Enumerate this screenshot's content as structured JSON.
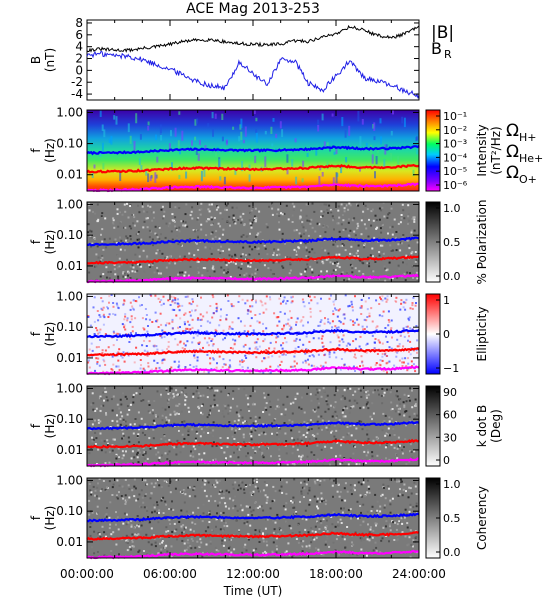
{
  "title": "ACE Mag 2013-253",
  "x_axis": {
    "label": "Time (UT)",
    "ticks": [
      "00:00:00",
      "06:00:00",
      "12:00:00",
      "18:00:00",
      "24:00:00"
    ],
    "range_hours": [
      0,
      24
    ]
  },
  "colors": {
    "B_total": "#000000",
    "B_R": "#1f1fe6",
    "H": "#0000ff",
    "He": "#ff0000",
    "O": "#ff00ff"
  },
  "legend_field": {
    "total": "|B|",
    "radial": "B",
    "radial_sub": "R"
  },
  "legend_gyro": {
    "omega": "Ω",
    "items": [
      {
        "sub": "H+",
        "color": "#0000ff"
      },
      {
        "sub": "He+",
        "color": "#ff0000"
      },
      {
        "sub": "O+",
        "color": "#ff00ff"
      }
    ]
  },
  "field_panel": {
    "ylabel": "B",
    "yunit": "(nT)",
    "yticks": [
      "8",
      "6",
      "4",
      "2",
      "0",
      "-2",
      "-4"
    ],
    "ylim": [
      -5,
      8.5
    ]
  },
  "freq_axis": {
    "ylabel": "f",
    "yunit": "(Hz)",
    "ticks": [
      "1.00",
      "0.10",
      "0.01"
    ],
    "scale": "log",
    "range_hz": [
      0.003,
      1.2
    ]
  },
  "spectrogram_panels": [
    {
      "id": "intensity",
      "colorbar": "rainbow",
      "cb_label": "Intensity",
      "cb_unit": "(nT²/Hz)",
      "cb_ticks": [
        "10⁻¹",
        "10⁻²",
        "10⁻³",
        "10⁻⁴",
        "10⁻⁵",
        "10⁻⁶"
      ]
    },
    {
      "id": "polarization",
      "colorbar": "gray",
      "cb_label": "% Polarization",
      "cb_unit": "",
      "cb_ticks": [
        "1.0",
        "0.5",
        "0.0"
      ]
    },
    {
      "id": "ellipticity",
      "colorbar": "bwr",
      "cb_label": "Ellipticity",
      "cb_unit": "",
      "cb_ticks": [
        "1",
        "0",
        "−1"
      ]
    },
    {
      "id": "kdotb",
      "colorbar": "gray",
      "cb_label": "k dot B",
      "cb_unit": "(Deg)",
      "cb_ticks": [
        "90",
        "60",
        "30",
        "0"
      ]
    },
    {
      "id": "coherency",
      "colorbar": "gray",
      "cb_label": "Coherency",
      "cb_unit": "",
      "cb_ticks": [
        "1.0",
        "0.5",
        "0.0"
      ]
    }
  ],
  "chart_data": [
    {
      "type": "line",
      "title": "ACE Mag 2013-253",
      "xlabel": "Time (UT)",
      "ylabel": "B (nT)",
      "ylim": [
        -5,
        8.5
      ],
      "x_hours": [
        0,
        1,
        2,
        3,
        4,
        5,
        6,
        7,
        8,
        9,
        10,
        11,
        12,
        13,
        14,
        15,
        16,
        17,
        18,
        19,
        20,
        21,
        22,
        23,
        24
      ],
      "series": [
        {
          "name": "|B|",
          "values": [
            3.4,
            3.6,
            3.4,
            3.4,
            3.7,
            4.0,
            4.4,
            4.9,
            5.1,
            5.2,
            4.8,
            4.5,
            4.4,
            4.3,
            4.4,
            5.0,
            4.9,
            5.6,
            6.2,
            7.4,
            6.8,
            5.9,
            5.5,
            6.2,
            7.4
          ]
        },
        {
          "name": "B_R",
          "values": [
            2.6,
            2.8,
            2.5,
            2.4,
            1.8,
            1.0,
            0.2,
            -0.8,
            -1.9,
            -2.6,
            -3.0,
            1.4,
            -0.6,
            -2.4,
            1.8,
            1.6,
            -2.2,
            -3.4,
            -1.0,
            1.6,
            -1.2,
            -1.8,
            -2.6,
            -3.4,
            -4.4
          ]
        }
      ]
    },
    {
      "type": "line",
      "title": "",
      "xlabel": "Time (UT)",
      "ylabel": "f (Hz)",
      "yscale": "log",
      "ylim": [
        0.003,
        1.2
      ],
      "x_hours": [
        0,
        2,
        4,
        6,
        8,
        10,
        12,
        14,
        16,
        18,
        20,
        22,
        24
      ],
      "series": [
        {
          "name": "ΩH+",
          "values": [
            0.05,
            0.051,
            0.054,
            0.062,
            0.066,
            0.062,
            0.06,
            0.062,
            0.066,
            0.077,
            0.068,
            0.07,
            0.08
          ]
        },
        {
          "name": "ΩHe+",
          "values": [
            0.0125,
            0.0128,
            0.0135,
            0.0155,
            0.0165,
            0.0155,
            0.015,
            0.0155,
            0.0165,
            0.0193,
            0.017,
            0.0175,
            0.02
          ]
        },
        {
          "name": "ΩO+",
          "values": [
            0.0031,
            0.0032,
            0.0034,
            0.0039,
            0.0041,
            0.0039,
            0.0038,
            0.0039,
            0.0041,
            0.0048,
            0.0043,
            0.0044,
            0.005
          ]
        }
      ]
    }
  ]
}
